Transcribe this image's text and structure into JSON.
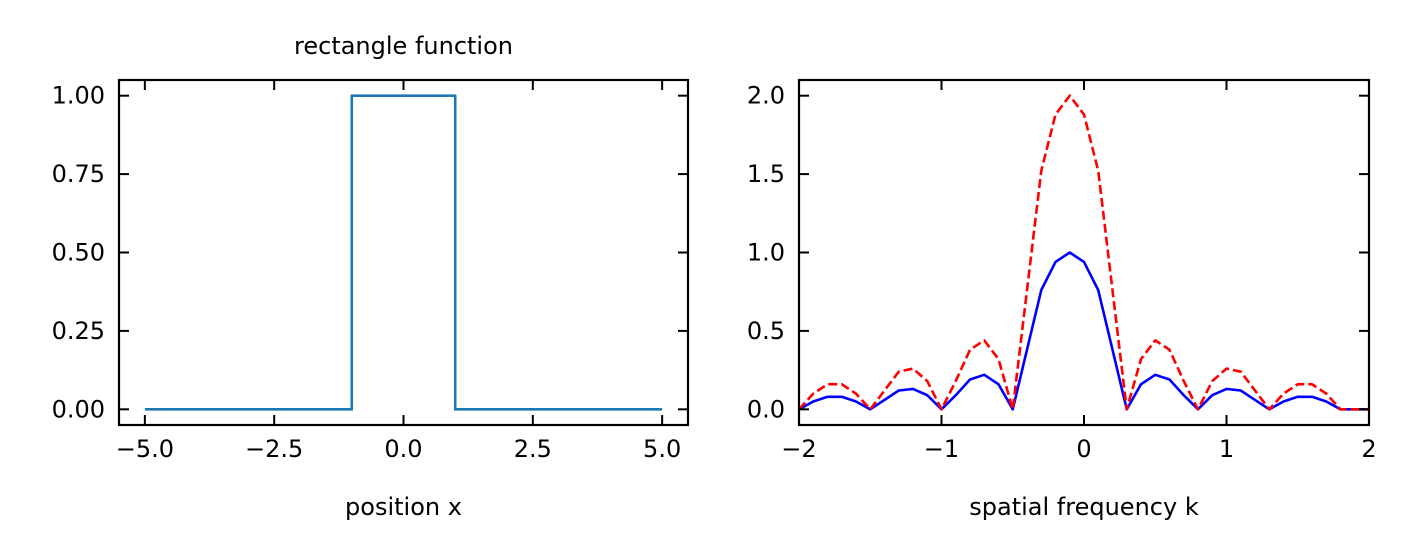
{
  "chart_data": [
    {
      "type": "line",
      "title": "rectangle function",
      "xlabel": "position x",
      "ylabel": "",
      "xlim": [
        -5.5,
        5.5
      ],
      "ylim": [
        -0.05,
        1.05
      ],
      "xticks": [
        -5.0,
        -2.5,
        0.0,
        2.5,
        5.0
      ],
      "xtick_labels": [
        "−5.0",
        "−2.5",
        "0.0",
        "2.5",
        "5.0"
      ],
      "yticks": [
        0.0,
        0.25,
        0.5,
        0.75,
        1.0
      ],
      "ytick_labels": [
        "0.00",
        "0.25",
        "0.50",
        "0.75",
        "1.00"
      ],
      "grid": false,
      "series": [
        {
          "color": "#1f77b4",
          "style": "solid",
          "x": [
            -5,
            -1,
            -1,
            1,
            1,
            5
          ],
          "y": [
            0,
            0,
            1,
            1,
            0,
            0
          ]
        }
      ]
    },
    {
      "type": "line",
      "title": "",
      "xlabel": "spatial frequency k",
      "ylabel": "",
      "xlim": [
        -2,
        2
      ],
      "ylim": [
        -0.1,
        2.1
      ],
      "xticks": [
        -2,
        -1,
        0,
        1,
        2
      ],
      "xtick_labels": [
        "−2",
        "−1",
        "0",
        "1",
        "2"
      ],
      "yticks": [
        0.0,
        0.5,
        1.0,
        1.5,
        2.0
      ],
      "ytick_labels": [
        "0.0",
        "0.5",
        "1.0",
        "1.5",
        "2.0"
      ],
      "grid": false,
      "series": [
        {
          "color": "#0000ff",
          "style": "solid",
          "x": [
            -2,
            -1.9,
            -1.8,
            -1.7,
            -1.6,
            -1.5,
            -1.4,
            -1.3,
            -1.2,
            -1.1,
            -1,
            -0.9,
            -0.8,
            -0.7,
            -0.6,
            -0.5,
            -0.4,
            -0.3,
            -0.2,
            -0.1,
            0,
            0.1,
            0.2,
            0.3,
            0.4,
            0.5,
            0.6,
            0.7,
            0.8,
            0.9,
            1,
            1.1,
            1.2,
            1.3,
            1.4,
            1.5,
            1.6,
            1.7,
            1.8,
            1.9,
            2
          ],
          "y": [
            0,
            0.05,
            0.08,
            0.08,
            0.05,
            0,
            0.06,
            0.12,
            0.13,
            0.09,
            0,
            0.09,
            0.19,
            0.22,
            0.16,
            0,
            0.38,
            0.76,
            0.94,
            1.0,
            0.94,
            0.76,
            0.38,
            0,
            0.16,
            0.22,
            0.19,
            0.09,
            0,
            0.09,
            0.13,
            0.12,
            0.06,
            0,
            0.05,
            0.08,
            0.08,
            0.05,
            0,
            0,
            0
          ]
        },
        {
          "color": "#ff0000",
          "style": "dashed",
          "x": [
            -2,
            -1.9,
            -1.8,
            -1.7,
            -1.6,
            -1.5,
            -1.4,
            -1.3,
            -1.2,
            -1.1,
            -1,
            -0.9,
            -0.8,
            -0.7,
            -0.6,
            -0.5,
            -0.4,
            -0.3,
            -0.2,
            -0.1,
            0,
            0.1,
            0.2,
            0.3,
            0.4,
            0.5,
            0.6,
            0.7,
            0.8,
            0.9,
            1,
            1.1,
            1.2,
            1.3,
            1.4,
            1.5,
            1.6,
            1.7,
            1.8,
            1.9,
            2
          ],
          "y": [
            0,
            0.1,
            0.16,
            0.16,
            0.1,
            0,
            0.12,
            0.24,
            0.26,
            0.18,
            0,
            0.18,
            0.38,
            0.44,
            0.32,
            0,
            0.76,
            1.52,
            1.88,
            2.0,
            1.88,
            1.52,
            0.76,
            0,
            0.32,
            0.44,
            0.38,
            0.18,
            0,
            0.18,
            0.26,
            0.24,
            0.12,
            0,
            0.1,
            0.16,
            0.16,
            0.1,
            0,
            0,
            0
          ]
        }
      ]
    }
  ]
}
